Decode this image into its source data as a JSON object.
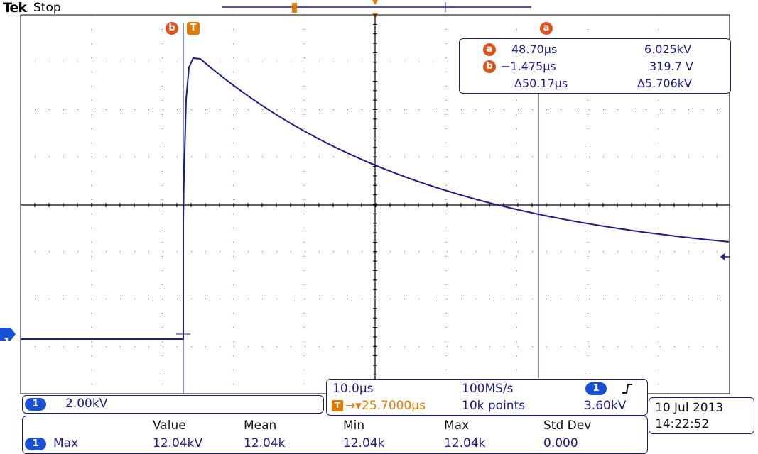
{
  "brand": "Tek",
  "run_state": "Stop",
  "markers": {
    "cursor_a": "a",
    "cursor_b": "b",
    "trigger": "T",
    "channel": "1"
  },
  "cursor_readout": {
    "a_time": "48.70μs",
    "a_value": "6.025kV",
    "b_time": "−1.475μs",
    "b_value": "319.7 V",
    "delta_time": "Δ50.17μs",
    "delta_value": "Δ5.706kV"
  },
  "channel_scale": "2.00kV",
  "horizontal": {
    "timebase": "10.0μs",
    "sample_rate": "100MS/s",
    "trigger_offset": "25.7000μs",
    "record_length": "10k points",
    "trigger_level": "3.60kV",
    "trigger_slope_icon": "rising-edge-icon"
  },
  "datetime": {
    "date": "10 Jul  2013",
    "time": "14:22:52"
  },
  "measurements": {
    "headers": [
      "Value",
      "Mean",
      "Min",
      "Max",
      "Std Dev"
    ],
    "rows": [
      {
        "label": "Max",
        "values": [
          "12.04kV",
          "12.04k",
          "12.04k",
          "12.04k",
          "0.000"
        ]
      }
    ]
  },
  "colors": {
    "trace": "#1c1c8c",
    "grid": "#000000",
    "cursor_badge": "#e2521c",
    "trigger": "#e07b00",
    "channel_badge": "#1a4fd8"
  }
}
